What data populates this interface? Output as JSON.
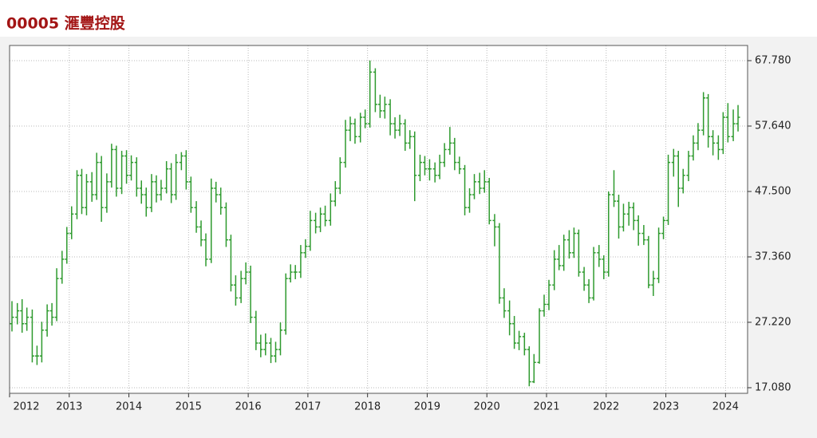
{
  "chart_data": {
    "type": "ohlc",
    "title": "00005  滙豐控股",
    "color": "#2e9a2e",
    "grid": true,
    "xlim": [
      2012.0,
      2024.37
    ],
    "xticks": [
      2012,
      2013,
      2014,
      2015,
      2016,
      2017,
      2018,
      2019,
      2020,
      2021,
      2022,
      2023,
      2024
    ],
    "ylim": [
      16.21,
      70.13
    ],
    "yticks": [
      {
        "value": 17.08,
        "label": "17.080"
      },
      {
        "value": 27.22,
        "label": "27.220"
      },
      {
        "value": 37.36,
        "label": "37.360"
      },
      {
        "value": 47.5,
        "label": "47.500"
      },
      {
        "value": 57.64,
        "label": "57.640"
      },
      {
        "value": 67.78,
        "label": "67.780"
      }
    ],
    "x": [
      2012.04,
      2012.13,
      2012.21,
      2012.29,
      2012.38,
      2012.46,
      2012.54,
      2012.63,
      2012.71,
      2012.79,
      2012.88,
      2012.96,
      2013.04,
      2013.13,
      2013.21,
      2013.29,
      2013.38,
      2013.46,
      2013.54,
      2013.63,
      2013.71,
      2013.79,
      2013.88,
      2013.96,
      2014.04,
      2014.13,
      2014.21,
      2014.29,
      2014.38,
      2014.46,
      2014.54,
      2014.63,
      2014.71,
      2014.79,
      2014.88,
      2014.96,
      2015.04,
      2015.13,
      2015.21,
      2015.29,
      2015.38,
      2015.46,
      2015.54,
      2015.63,
      2015.71,
      2015.79,
      2015.88,
      2015.96,
      2016.04,
      2016.13,
      2016.21,
      2016.29,
      2016.38,
      2016.46,
      2016.54,
      2016.63,
      2016.71,
      2016.79,
      2016.88,
      2016.96,
      2017.04,
      2017.13,
      2017.21,
      2017.29,
      2017.38,
      2017.46,
      2017.54,
      2017.63,
      2017.71,
      2017.79,
      2017.88,
      2017.96,
      2018.04,
      2018.13,
      2018.21,
      2018.29,
      2018.38,
      2018.46,
      2018.54,
      2018.63,
      2018.71,
      2018.79,
      2018.88,
      2018.96,
      2019.04,
      2019.13,
      2019.21,
      2019.29,
      2019.38,
      2019.46,
      2019.54,
      2019.63,
      2019.71,
      2019.79,
      2019.88,
      2019.96,
      2020.04,
      2020.13,
      2020.21,
      2020.29,
      2020.38,
      2020.46,
      2020.54,
      2020.63,
      2020.71,
      2020.79,
      2020.88,
      2020.96,
      2021.04,
      2021.13,
      2021.21,
      2021.29,
      2021.38,
      2021.46,
      2021.54,
      2021.63,
      2021.71,
      2021.79,
      2021.88,
      2021.96,
      2022.04,
      2022.13,
      2022.21,
      2022.29,
      2022.38,
      2022.46,
      2022.54,
      2022.63,
      2022.71,
      2022.79,
      2022.88,
      2022.96,
      2023.04,
      2023.13,
      2023.21,
      2023.29,
      2023.38,
      2023.46,
      2023.54,
      2023.63,
      2023.71,
      2023.79,
      2023.88,
      2023.96,
      2024.04,
      2024.13,
      2024.21
    ],
    "ohlc": [
      [
        27,
        30.5,
        25.8,
        28
      ],
      [
        28,
        30.2,
        26.9,
        29
      ],
      [
        29,
        30.8,
        25.6,
        27
      ],
      [
        27,
        29.5,
        25.9,
        28
      ],
      [
        28,
        29.2,
        21,
        22
      ],
      [
        22,
        23.6,
        20.6,
        22
      ],
      [
        22,
        27.3,
        21,
        26
      ],
      [
        26,
        30,
        25,
        29
      ],
      [
        29,
        30.2,
        26.7,
        28
      ],
      [
        28,
        35.6,
        27.4,
        34
      ],
      [
        34,
        38.3,
        33.2,
        37
      ],
      [
        37,
        42,
        36.3,
        41
      ],
      [
        41,
        45.2,
        40.1,
        44
      ],
      [
        44,
        50.8,
        43.2,
        50
      ],
      [
        50,
        51,
        44,
        45
      ],
      [
        45,
        50.2,
        43.8,
        49
      ],
      [
        49,
        50.5,
        45.9,
        47
      ],
      [
        47,
        53.5,
        46.2,
        52
      ],
      [
        52,
        53,
        42.8,
        45
      ],
      [
        45,
        50.3,
        44.2,
        49
      ],
      [
        49,
        54.9,
        48.1,
        54
      ],
      [
        54,
        54.6,
        46.7,
        48
      ],
      [
        48,
        53.8,
        47.1,
        53
      ],
      [
        53,
        53.9,
        48.7,
        50
      ],
      [
        50,
        53.1,
        49.2,
        52
      ],
      [
        52,
        52.8,
        46.7,
        48
      ],
      [
        48,
        49.2,
        45.6,
        47
      ],
      [
        47,
        48.1,
        43.6,
        45
      ],
      [
        45,
        50.2,
        44.3,
        49
      ],
      [
        49,
        50,
        45.8,
        47
      ],
      [
        47,
        49.3,
        46.1,
        48
      ],
      [
        48,
        52.2,
        47.2,
        51
      ],
      [
        51,
        51.9,
        45.7,
        47
      ],
      [
        47,
        53.3,
        46.2,
        52
      ],
      [
        52,
        53.6,
        50.8,
        53
      ],
      [
        53,
        53.9,
        47.8,
        49
      ],
      [
        49,
        49.8,
        44.2,
        45
      ],
      [
        45,
        46,
        41.1,
        42
      ],
      [
        42,
        43,
        39,
        40
      ],
      [
        40,
        41,
        35.9,
        37
      ],
      [
        37,
        49.5,
        36.4,
        48
      ],
      [
        48,
        49,
        45.8,
        47
      ],
      [
        47,
        48.1,
        43.9,
        45
      ],
      [
        45,
        45.8,
        38.9,
        40
      ],
      [
        40,
        40.8,
        32,
        33
      ],
      [
        33,
        34.5,
        29.8,
        31
      ],
      [
        31,
        35.2,
        30.2,
        34
      ],
      [
        34,
        36.5,
        33.1,
        35
      ],
      [
        35,
        36,
        27.1,
        28
      ],
      [
        28,
        29,
        22.9,
        24
      ],
      [
        24,
        25.3,
        21.8,
        23
      ],
      [
        23,
        25.5,
        22.1,
        24
      ],
      [
        24,
        24.8,
        20.9,
        22
      ],
      [
        22,
        24.2,
        21,
        23
      ],
      [
        23,
        27.2,
        22.1,
        26
      ],
      [
        26,
        34.8,
        25.3,
        34
      ],
      [
        34,
        36.2,
        33.4,
        35
      ],
      [
        35,
        36.1,
        33.9,
        35
      ],
      [
        35,
        39.2,
        34.1,
        38
      ],
      [
        38,
        40.1,
        37.2,
        39
      ],
      [
        39,
        44.5,
        38.3,
        43
      ],
      [
        43,
        44.2,
        41,
        42
      ],
      [
        42,
        45,
        41.2,
        44
      ],
      [
        44,
        45.3,
        42.1,
        43
      ],
      [
        43,
        47.2,
        42.2,
        46
      ],
      [
        46,
        49.1,
        45.2,
        48
      ],
      [
        48,
        52.8,
        47.1,
        52
      ],
      [
        52,
        58.6,
        51.2,
        57
      ],
      [
        57,
        59.1,
        55.3,
        58
      ],
      [
        58,
        58.8,
        54.9,
        56
      ],
      [
        56,
        59.7,
        55.1,
        59
      ],
      [
        59,
        60.2,
        57.3,
        58
      ],
      [
        58,
        67.8,
        57.4,
        66
      ],
      [
        66,
        66.6,
        59.8,
        61
      ],
      [
        61,
        62.5,
        58.9,
        60
      ],
      [
        60,
        62.2,
        58.8,
        61
      ],
      [
        61,
        61.8,
        56.2,
        58
      ],
      [
        58,
        59,
        55.7,
        57
      ],
      [
        57,
        59.4,
        56.1,
        58
      ],
      [
        58,
        58.7,
        53.8,
        55
      ],
      [
        55,
        57,
        54.1,
        56
      ],
      [
        56,
        56.8,
        46,
        50
      ],
      [
        50,
        53.2,
        49.1,
        52
      ],
      [
        52,
        53,
        50,
        51
      ],
      [
        51,
        52.5,
        49.2,
        51
      ],
      [
        51,
        52,
        48.9,
        50
      ],
      [
        50,
        53.2,
        49.4,
        52
      ],
      [
        52,
        55,
        51.3,
        54
      ],
      [
        54,
        57.5,
        53.2,
        55
      ],
      [
        55,
        55.8,
        50.8,
        52
      ],
      [
        52,
        52.9,
        50.2,
        51
      ],
      [
        51,
        51.6,
        43.8,
        45
      ],
      [
        45,
        48,
        44.2,
        47
      ],
      [
        47,
        50.2,
        46.3,
        49
      ],
      [
        49,
        50.4,
        47.1,
        48
      ],
      [
        48,
        50.8,
        47.3,
        49
      ],
      [
        49,
        49.6,
        42.4,
        43
      ],
      [
        43,
        44,
        39,
        42
      ],
      [
        42,
        42.6,
        30.1,
        31
      ],
      [
        31,
        32.5,
        27.9,
        29
      ],
      [
        29,
        30.6,
        25.2,
        27
      ],
      [
        27,
        28.2,
        23.1,
        24
      ],
      [
        24,
        25.9,
        22.9,
        25
      ],
      [
        25,
        25.6,
        22.1,
        23
      ],
      [
        23,
        23.5,
        17.3,
        18
      ],
      [
        18,
        22.3,
        17.8,
        21
      ],
      [
        21,
        29.4,
        20.8,
        29
      ],
      [
        29,
        31.5,
        28.1,
        30
      ],
      [
        30,
        33.8,
        29.1,
        33
      ],
      [
        33,
        38.4,
        32.2,
        37
      ],
      [
        37,
        39.2,
        35.3,
        36
      ],
      [
        36,
        40.8,
        35.2,
        40
      ],
      [
        40,
        41.5,
        37.1,
        38
      ],
      [
        38,
        41.9,
        37.2,
        41
      ],
      [
        41,
        41.6,
        34.3,
        35
      ],
      [
        35,
        35.8,
        32.1,
        33
      ],
      [
        33,
        33.9,
        30.2,
        31
      ],
      [
        31,
        38.9,
        30.6,
        38
      ],
      [
        38,
        39.2,
        35.8,
        37
      ],
      [
        37,
        37.6,
        33.9,
        35
      ],
      [
        35,
        47.5,
        34.3,
        47
      ],
      [
        47,
        50.8,
        45.1,
        46
      ],
      [
        46,
        47,
        40.2,
        42
      ],
      [
        42,
        45.6,
        41.3,
        44
      ],
      [
        44,
        45.9,
        42.2,
        45
      ],
      [
        45,
        45.8,
        41.5,
        43
      ],
      [
        43,
        43.8,
        39.1,
        41
      ],
      [
        41,
        42.3,
        39.2,
        40
      ],
      [
        40,
        40.6,
        32.5,
        33
      ],
      [
        33,
        35.2,
        31.3,
        34
      ],
      [
        34,
        41.9,
        33.3,
        41
      ],
      [
        41,
        43.6,
        40.1,
        43
      ],
      [
        43,
        53.2,
        42.3,
        52
      ],
      [
        52,
        54.1,
        49.8,
        53
      ],
      [
        53,
        53.8,
        45.1,
        48
      ],
      [
        48,
        51,
        47.2,
        50
      ],
      [
        50,
        53.8,
        49.1,
        53
      ],
      [
        53,
        56.2,
        52.3,
        55
      ],
      [
        55,
        58.1,
        53.9,
        57
      ],
      [
        57,
        62.9,
        56.2,
        62
      ],
      [
        62,
        62.6,
        54.3,
        56
      ],
      [
        56,
        57,
        53.1,
        55
      ],
      [
        55,
        56.2,
        52.4,
        54
      ],
      [
        54,
        59.8,
        53.3,
        59
      ],
      [
        59,
        61.2,
        55.1,
        56
      ],
      [
        56,
        60.2,
        55.3,
        58
      ],
      [
        58,
        60.9,
        56.8,
        59
      ]
    ]
  }
}
